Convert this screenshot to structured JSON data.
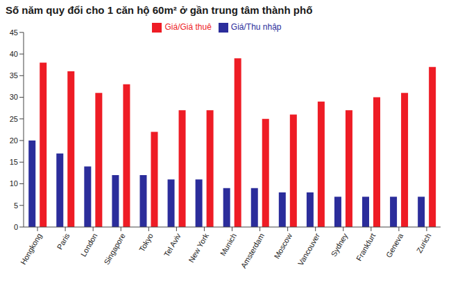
{
  "chart_data": {
    "type": "bar",
    "title": "Số năm quy đổi cho 1 căn hộ 60m² ở gần trung tâm thành phố",
    "categories": [
      "Hongkong",
      "Paris",
      "London",
      "Singapore",
      "Tokyo",
      "Tel Aviv",
      "New York",
      "Munich",
      "Amsterdam",
      "Moscow",
      "Vancouver",
      "Sydney",
      "Frankfurt",
      "Geneva",
      "Zurich"
    ],
    "series": [
      {
        "name": "Giá/Thu nhập",
        "color": "#2b2d9b",
        "values": [
          20,
          17,
          14,
          12,
          12,
          11,
          11,
          9,
          9,
          8,
          8,
          7,
          7,
          7,
          7
        ]
      },
      {
        "name": "Giá/Giá thuê",
        "color": "#ee1c25",
        "values": [
          38,
          36,
          31,
          33,
          22,
          27,
          27,
          39,
          25,
          26,
          29,
          27,
          30,
          31,
          37
        ]
      }
    ],
    "ylim": [
      0,
      45
    ],
    "yticks": [
      0,
      5,
      10,
      15,
      20,
      25,
      30,
      35,
      40,
      45
    ],
    "grid": false,
    "legend": "top"
  }
}
